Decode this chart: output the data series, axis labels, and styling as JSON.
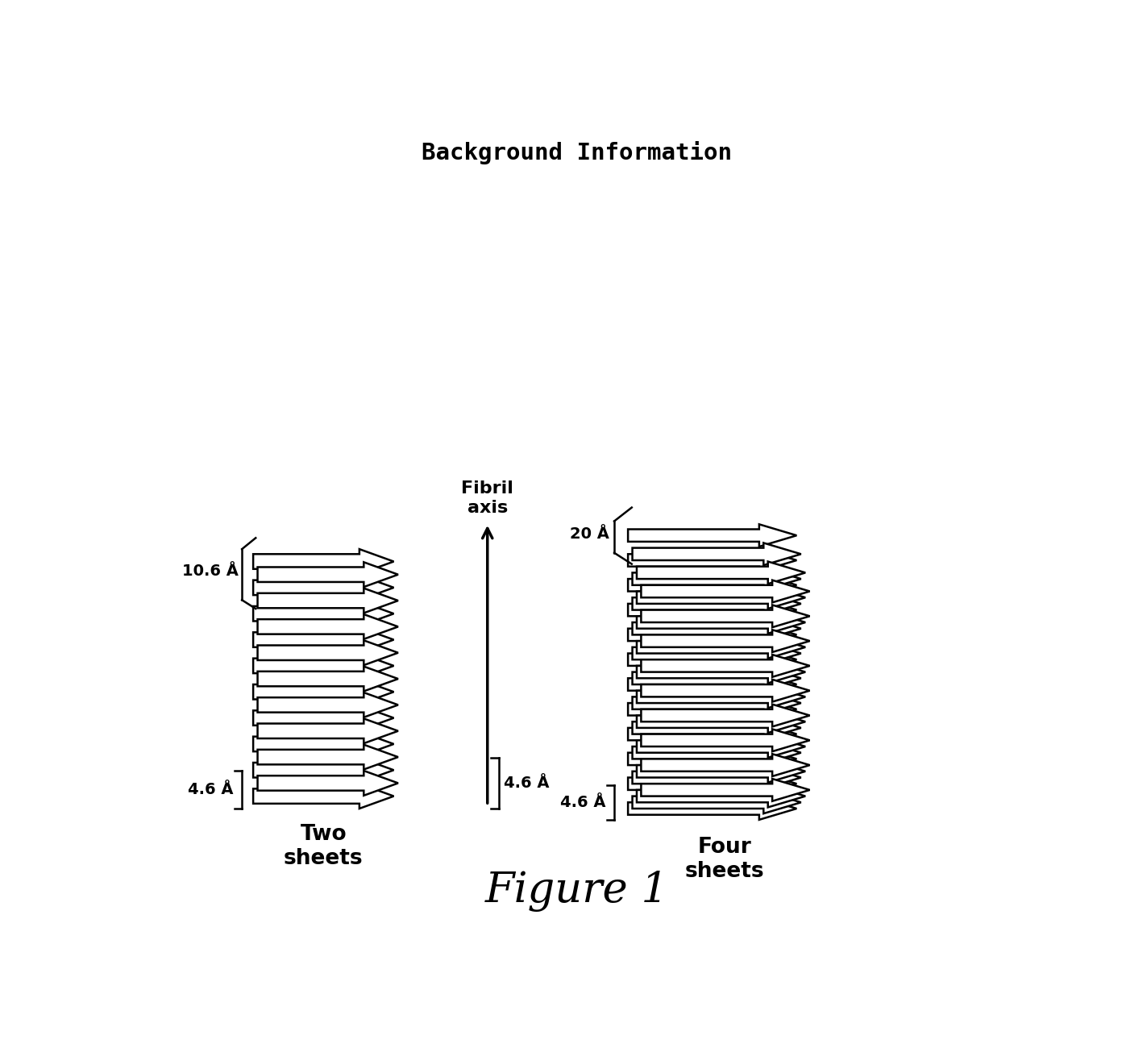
{
  "title": "Background Information",
  "figure_label": "Figure 1",
  "bg_color": "#ffffff",
  "line_color": "#000000",
  "fill_color": "#ffffff",
  "left_label": "Two\nsheets",
  "right_label": "Four\nsheets",
  "fibril_axis_label": "Fibril\naxis",
  "left_10_6_label": "10.6 Å",
  "left_4_6_label": "4.6 Å",
  "right_20_label": "20 Å",
  "right_4_6_label": "4.6 Å",
  "center_4_6_label": "4.6 Å",
  "two_sheets_rows": 9,
  "four_sheets_rows": 11
}
